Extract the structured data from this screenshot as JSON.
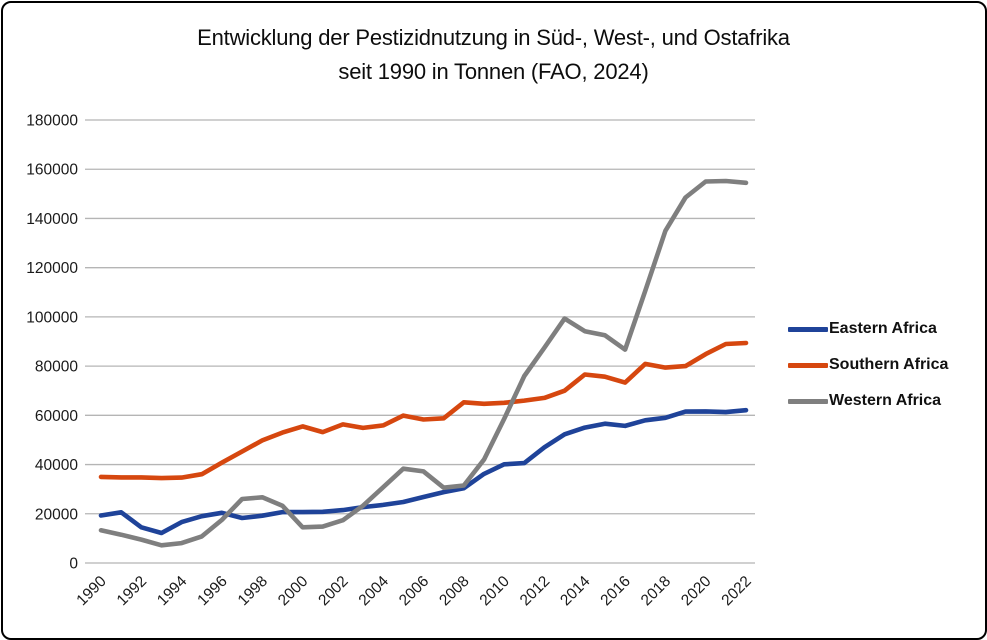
{
  "window": {
    "background_color": "#ffffff",
    "frame_border_color": "#000000"
  },
  "chart_data": {
    "type": "line",
    "title_line1": "Entwicklung der Pestizidnutzung in Süd-, West-, und Ostafrika",
    "title_line2": "seit 1990 in Tonnen (FAO, 2024)",
    "xlabel": "",
    "ylabel": "",
    "ylim": [
      0,
      180000
    ],
    "y_ticks": [
      0,
      20000,
      40000,
      60000,
      80000,
      100000,
      120000,
      140000,
      160000,
      180000
    ],
    "grid": "horizontal",
    "gridline_color": "#b5b5b5",
    "legend_position": "right",
    "x": [
      1990,
      1991,
      1992,
      1993,
      1994,
      1995,
      1996,
      1997,
      1998,
      1999,
      2000,
      2001,
      2002,
      2003,
      2004,
      2005,
      2006,
      2007,
      2008,
      2009,
      2010,
      2011,
      2012,
      2013,
      2014,
      2015,
      2016,
      2017,
      2018,
      2019,
      2020,
      2021,
      2022
    ],
    "x_tick_labels": [
      "1990",
      "1992",
      "1994",
      "1996",
      "1998",
      "2000",
      "2002",
      "2004",
      "2006",
      "2008",
      "2010",
      "2012",
      "2014",
      "2016",
      "2018",
      "2020",
      "2022"
    ],
    "series": [
      {
        "name": "Eastern Africa",
        "color": "#1f4399",
        "values": [
          19300,
          20600,
          14500,
          12200,
          16600,
          19000,
          20400,
          18300,
          19200,
          20700,
          20700,
          20800,
          21500,
          22700,
          23600,
          24800,
          26800,
          28800,
          30400,
          36200,
          40100,
          40600,
          47000,
          52300,
          55000,
          56600,
          55700,
          58000,
          59000,
          61500,
          61600,
          61300,
          62100
        ]
      },
      {
        "name": "Southern Africa",
        "color": "#d6470f",
        "values": [
          35000,
          34800,
          34800,
          34500,
          34700,
          36100,
          40800,
          45300,
          49800,
          53000,
          55500,
          53200,
          56300,
          54900,
          55900,
          59900,
          58300,
          58800,
          65300,
          64700,
          65100,
          66000,
          67100,
          70000,
          76600,
          75700,
          73300,
          80900,
          79400,
          80000,
          84900,
          89000,
          89400
        ]
      },
      {
        "name": "Western Africa",
        "color": "#7f7f7f",
        "values": [
          13300,
          11500,
          9500,
          7200,
          8100,
          10800,
          17500,
          26000,
          26700,
          23300,
          14500,
          14800,
          17400,
          23300,
          30800,
          38300,
          37200,
          30600,
          31500,
          42000,
          58500,
          76000,
          87500,
          99300,
          94200,
          92500,
          86700,
          110500,
          135000,
          148500,
          155000,
          155200,
          154500
        ]
      }
    ]
  }
}
